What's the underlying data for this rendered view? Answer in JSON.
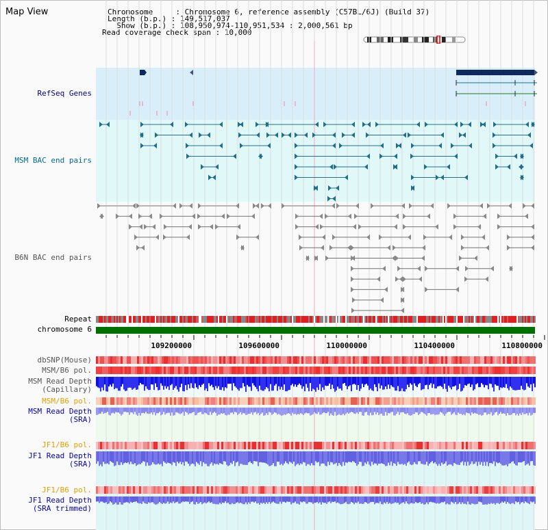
{
  "view_title": "Map View",
  "header": {
    "line1": "Chromosome     : Chromosome 6, reference assembly (C57BL/6J) (Build 37)",
    "line2": "Length (b.p.) : 149,517,037",
    "line3": "  Show (b.p.) : 108,950,974-110,951,534 : 2,000,561 bp",
    "line4": "Read coverage check span : 10,000"
  },
  "tracks": {
    "refseq": "RefSeq Genes",
    "msm_bac": "MSM BAC end pairs",
    "b6n_bac": "B6N BAC end pairs",
    "repeat": "Repeat",
    "chromosome": "chromosome 6",
    "dbsnp": "dbSNP(Mouse)",
    "msm_b6_pol_1": "MSM/B6 pol.",
    "msm_depth_cap_1": "MSM Read Depth",
    "msm_depth_cap_2": "(Capillary)",
    "msm_b6_pol_2": "MSM/B6 pol.",
    "msm_depth_sra_1": "MSM Read Depth",
    "msm_depth_sra_2": "(SRA)",
    "jf1_b6_pol_1": "JF1/B6 pol.",
    "jf1_depth_sra_1": "JF1 Read Depth",
    "jf1_depth_sra_2": "(SRA)",
    "jf1_b6_pol_2": "JF1/B6 pol.",
    "jf1_depth_trim_1": "JF1 Read Depth",
    "jf1_depth_trim_2": "(SRA trimmed)"
  },
  "axis_ticks": [
    "109200000",
    "109600000",
    "110000000",
    "110400000",
    "110800000"
  ],
  "colors": {
    "refseq_label": "#00008b",
    "msm_label": "#006b8b",
    "b6n_label": "#555555",
    "orange_label": "#e0a000",
    "blue_label": "#0000c0",
    "refseq_bg": "#d8eefa",
    "msm_bg": "#e0f8f8",
    "msm_feature": "#1f6f8b",
    "b6n_feature": "#707070",
    "chromosome_bar": "#007000"
  }
}
